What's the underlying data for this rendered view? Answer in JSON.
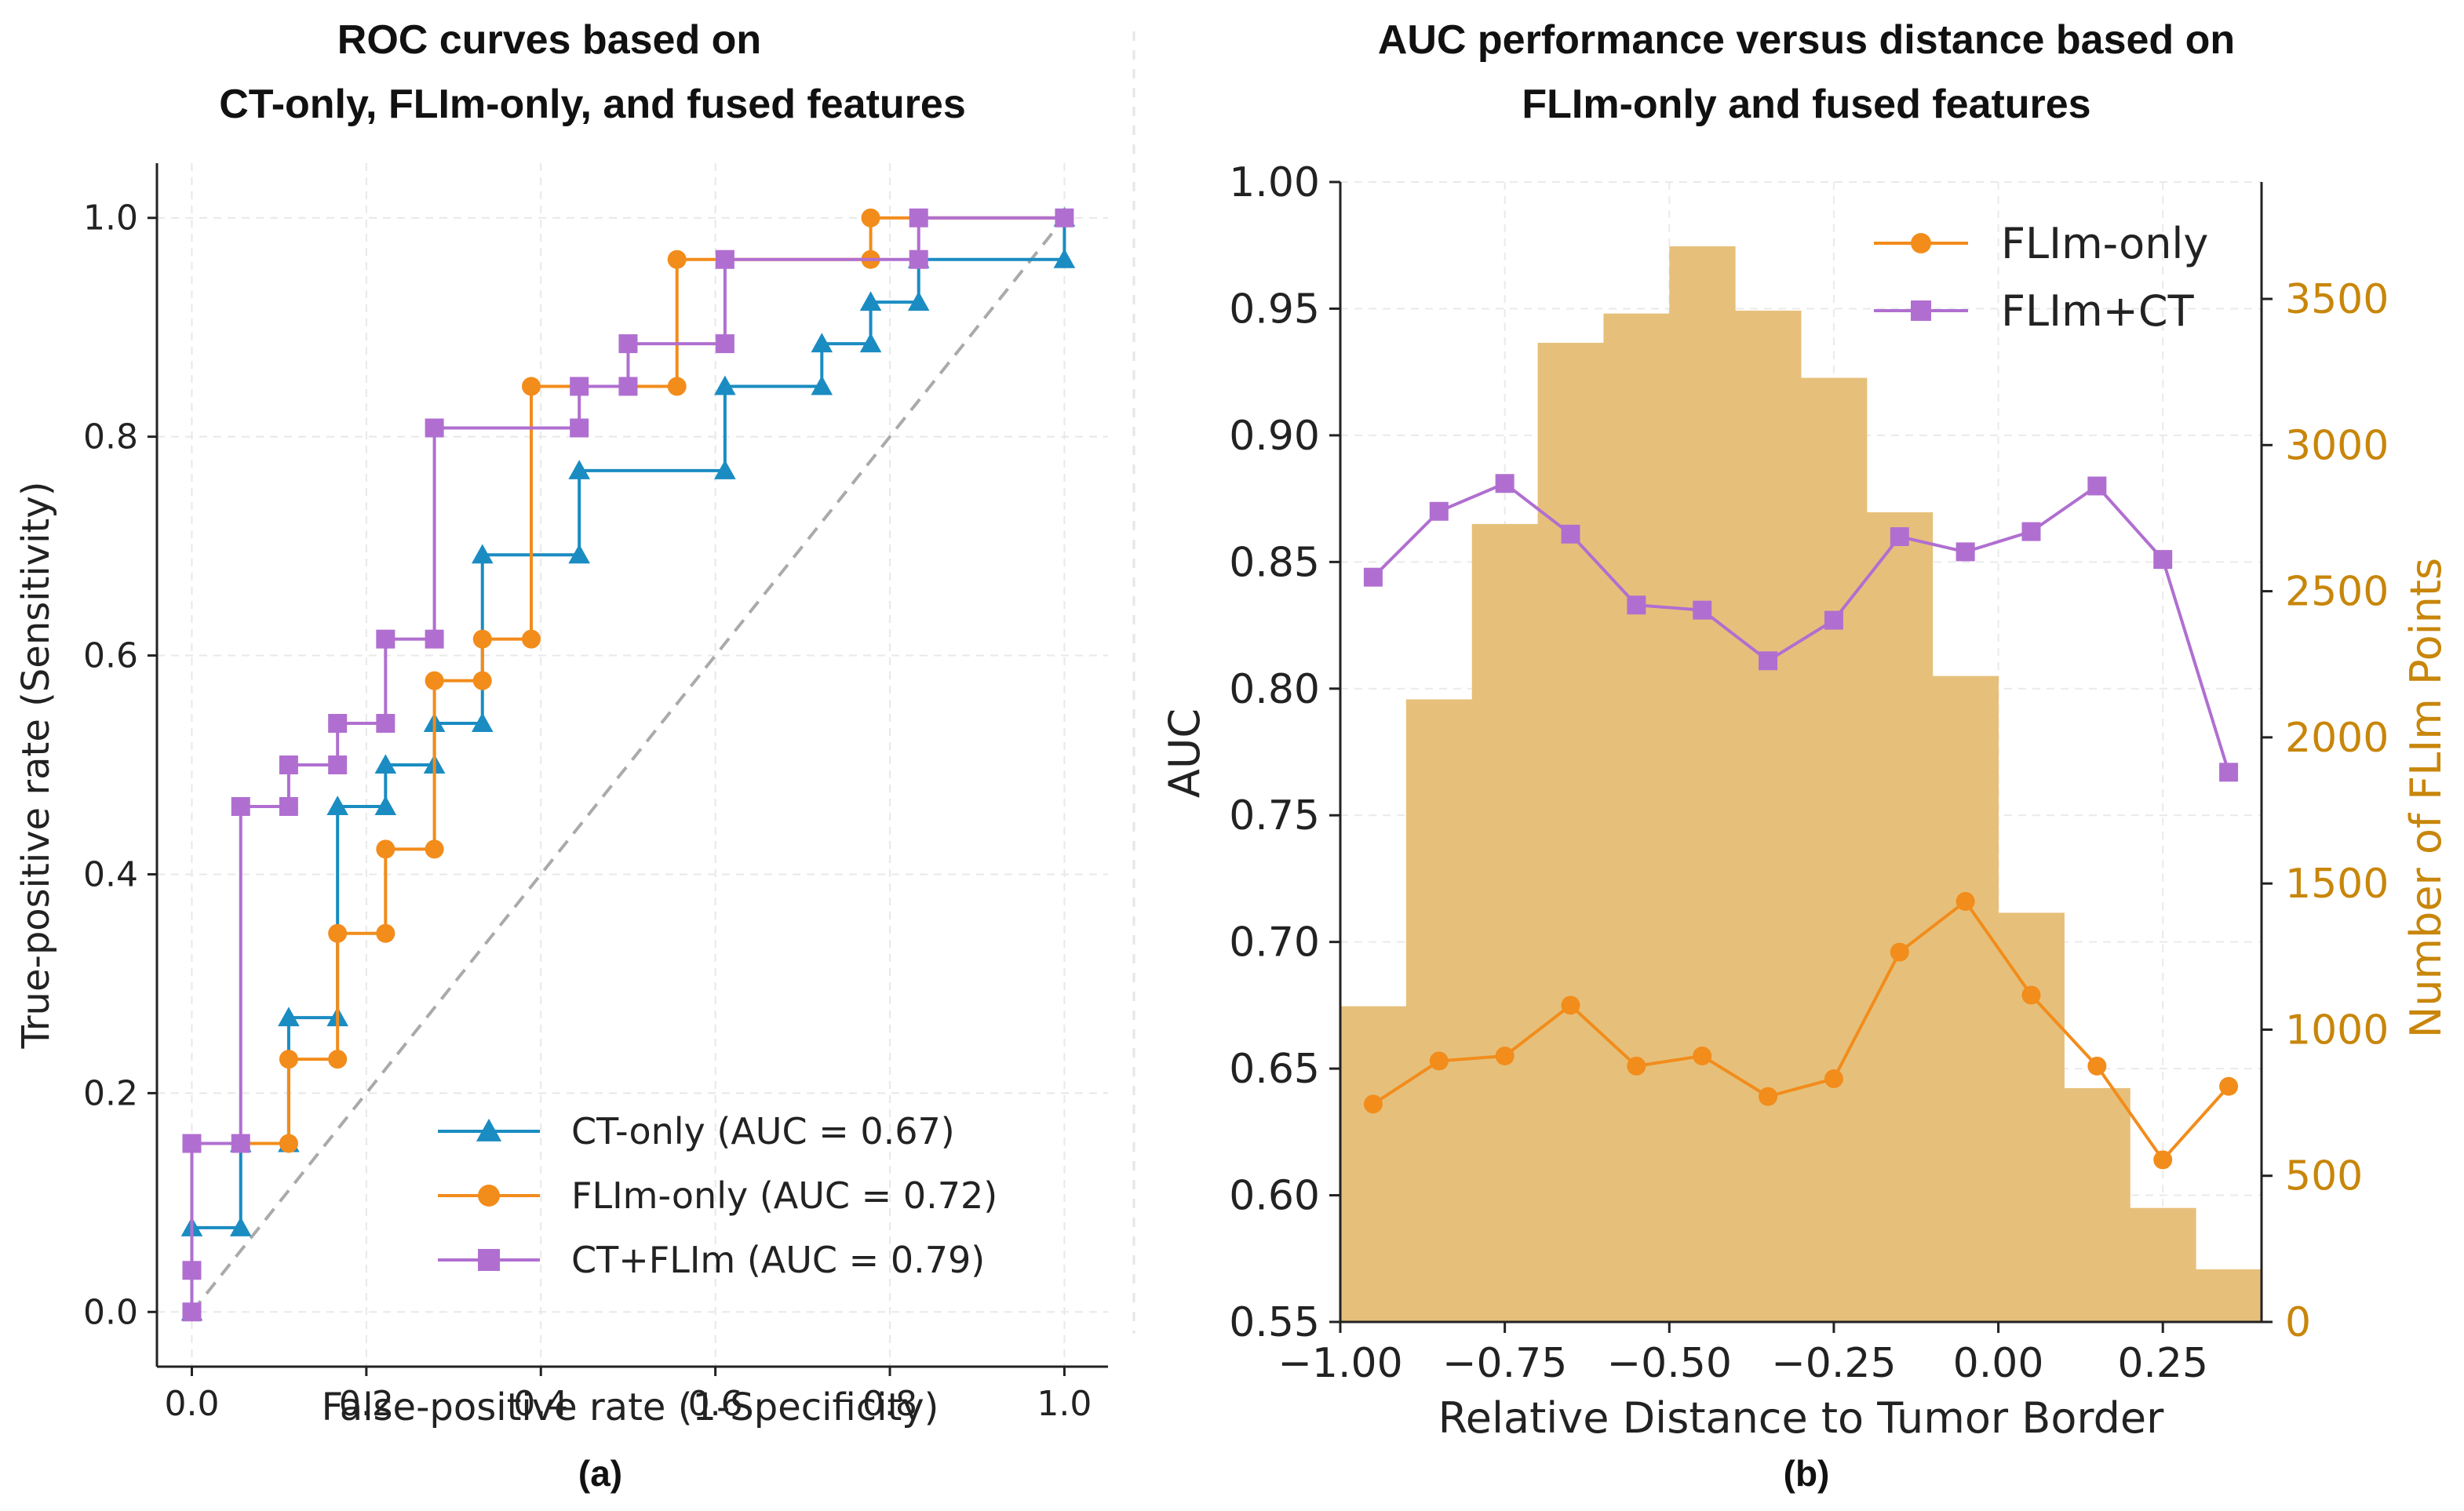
{
  "colors": {
    "ct": "#1a8cc2",
    "flim": "#f28c1b",
    "fused": "#b06fd0",
    "bars": "#e6c07a",
    "right_axis": "#c8860a",
    "diagonal": "#aaaaaa"
  },
  "chart_data": [
    {
      "type": "line",
      "panel": "(a)",
      "title": [
        "ROC curves based on",
        "CT-only, FLIm-only, and fused features"
      ],
      "xlabel": "False-positive rate (1-Specificity)",
      "ylabel": "True-positive rate (Sensitivity)",
      "xlim": [
        -0.04,
        1.05
      ],
      "ylim": [
        -0.05,
        1.05
      ],
      "xticks": [
        0.0,
        0.2,
        0.4,
        0.6,
        0.8,
        1.0
      ],
      "xtick_labels": [
        "0.0",
        "0.2",
        "0.4",
        "0.6",
        "0.8",
        "1.0"
      ],
      "yticks": [
        0.0,
        0.2,
        0.4,
        0.6,
        0.8,
        1.0
      ],
      "ytick_labels": [
        "0.0",
        "0.2",
        "0.4",
        "0.6",
        "0.8",
        "1.0"
      ],
      "grid": true,
      "legend_position": "bottom-right",
      "diagonal": [
        [
          0,
          0
        ],
        [
          1,
          1
        ]
      ],
      "series": [
        {
          "name": "CT-only (AUC = 0.67)",
          "color_key": "ct",
          "marker": "triangle",
          "points": [
            [
              0,
              0
            ],
            [
              0,
              0.077
            ],
            [
              0.056,
              0.077
            ],
            [
              0.056,
              0.154
            ],
            [
              0.111,
              0.154
            ],
            [
              0.111,
              0.269
            ],
            [
              0.167,
              0.269
            ],
            [
              0.167,
              0.462
            ],
            [
              0.222,
              0.462
            ],
            [
              0.222,
              0.5
            ],
            [
              0.278,
              0.5
            ],
            [
              0.278,
              0.538
            ],
            [
              0.333,
              0.538
            ],
            [
              0.333,
              0.692
            ],
            [
              0.444,
              0.692
            ],
            [
              0.444,
              0.769
            ],
            [
              0.611,
              0.769
            ],
            [
              0.611,
              0.846
            ],
            [
              0.722,
              0.846
            ],
            [
              0.722,
              0.885
            ],
            [
              0.778,
              0.885
            ],
            [
              0.778,
              0.923
            ],
            [
              0.833,
              0.923
            ],
            [
              0.833,
              0.962
            ],
            [
              1.0,
              0.962
            ],
            [
              1.0,
              1.0
            ]
          ]
        },
        {
          "name": "FLIm-only (AUC = 0.72)",
          "color_key": "flim",
          "marker": "circle",
          "points": [
            [
              0,
              0
            ],
            [
              0,
              0.154
            ],
            [
              0.111,
              0.154
            ],
            [
              0.111,
              0.231
            ],
            [
              0.167,
              0.231
            ],
            [
              0.167,
              0.346
            ],
            [
              0.222,
              0.346
            ],
            [
              0.222,
              0.423
            ],
            [
              0.278,
              0.423
            ],
            [
              0.278,
              0.577
            ],
            [
              0.333,
              0.577
            ],
            [
              0.333,
              0.615
            ],
            [
              0.389,
              0.615
            ],
            [
              0.389,
              0.846
            ],
            [
              0.556,
              0.846
            ],
            [
              0.556,
              0.962
            ],
            [
              0.778,
              0.962
            ],
            [
              0.778,
              1.0
            ],
            [
              1.0,
              1.0
            ]
          ]
        },
        {
          "name": "CT+FLIm (AUC = 0.79)",
          "color_key": "fused",
          "marker": "square",
          "points": [
            [
              0,
              0
            ],
            [
              0,
              0.038
            ],
            [
              0,
              0.154
            ],
            [
              0.056,
              0.154
            ],
            [
              0.056,
              0.462
            ],
            [
              0.111,
              0.462
            ],
            [
              0.111,
              0.5
            ],
            [
              0.167,
              0.5
            ],
            [
              0.167,
              0.538
            ],
            [
              0.222,
              0.538
            ],
            [
              0.222,
              0.615
            ],
            [
              0.278,
              0.615
            ],
            [
              0.278,
              0.808
            ],
            [
              0.444,
              0.808
            ],
            [
              0.444,
              0.846
            ],
            [
              0.5,
              0.846
            ],
            [
              0.5,
              0.885
            ],
            [
              0.611,
              0.885
            ],
            [
              0.611,
              0.962
            ],
            [
              0.833,
              0.962
            ],
            [
              0.833,
              1.0
            ],
            [
              1.0,
              1.0
            ]
          ]
        }
      ]
    },
    {
      "type": "line",
      "panel": "(b)",
      "title": [
        "AUC performance versus distance based on",
        "FLIm-only and fused features"
      ],
      "xlabel": "Relative Distance to Tumor Border",
      "ylabel": "AUC",
      "y2label": "Number of FLIm Points",
      "xlim": [
        -1.0,
        0.4
      ],
      "ylim": [
        0.55,
        1.0
      ],
      "y2lim": [
        0,
        3900
      ],
      "xticks": [
        -1.0,
        -0.75,
        -0.5,
        -0.25,
        0.0,
        0.25
      ],
      "xtick_labels": [
        "−1.00",
        "−0.75",
        "−0.50",
        "−0.25",
        "0.00",
        "0.25"
      ],
      "yticks": [
        0.55,
        0.6,
        0.65,
        0.7,
        0.75,
        0.8,
        0.85,
        0.9,
        0.95,
        1.0
      ],
      "ytick_labels": [
        "0.55",
        "0.60",
        "0.65",
        "0.70",
        "0.75",
        "0.80",
        "0.85",
        "0.90",
        "0.95",
        "1.00"
      ],
      "y2ticks": [
        0,
        500,
        1000,
        1500,
        2000,
        2500,
        3000,
        3500
      ],
      "y2tick_labels": [
        "0",
        "500",
        "1000",
        "1500",
        "2000",
        "2500",
        "3000",
        "3500"
      ],
      "grid": true,
      "legend_position": "top-right",
      "x": [
        -0.95,
        -0.85,
        -0.75,
        -0.65,
        -0.55,
        -0.45,
        -0.35,
        -0.25,
        -0.15,
        -0.05,
        0.05,
        0.15,
        0.25,
        0.35
      ],
      "histogram": {
        "bin_edges": [
          -1.0,
          -0.9,
          -0.8,
          -0.7,
          -0.6,
          -0.5,
          -0.4,
          -0.3,
          -0.2,
          -0.1,
          0.0,
          0.1,
          0.2,
          0.3,
          0.4
        ],
        "counts": [
          1080,
          2130,
          2730,
          3350,
          3450,
          3680,
          3460,
          3230,
          2770,
          2210,
          1400,
          800,
          390,
          180
        ]
      },
      "series": [
        {
          "name": "FLIm-only",
          "color_key": "flim",
          "marker": "circle",
          "values": [
            0.636,
            0.653,
            0.655,
            0.675,
            0.651,
            0.655,
            0.639,
            0.646,
            0.696,
            0.716,
            0.679,
            0.651,
            0.614,
            0.643
          ]
        },
        {
          "name": "FLIm+CT",
          "color_key": "fused",
          "marker": "square",
          "values": [
            0.844,
            0.87,
            0.881,
            0.861,
            0.833,
            0.831,
            0.811,
            0.827,
            0.86,
            0.854,
            0.862,
            0.88,
            0.851,
            0.767
          ]
        }
      ]
    }
  ]
}
